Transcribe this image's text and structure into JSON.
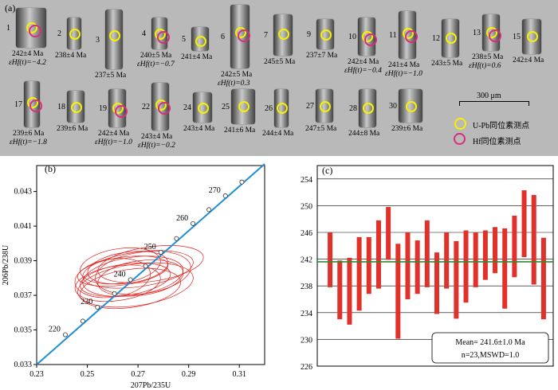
{
  "panel_labels": {
    "a": "(a)",
    "b": "(b)",
    "c": "(c)"
  },
  "grains": [
    {
      "num": "1",
      "age": "242±4 Ma",
      "eps": "εHf(t)=−4.2",
      "hf": true
    },
    {
      "num": "2",
      "age": "238±4 Ma",
      "eps": "",
      "hf": false
    },
    {
      "num": "3",
      "age": "237±5 Ma",
      "eps": "",
      "hf": false
    },
    {
      "num": "4",
      "age": "240±5 Ma",
      "eps": "εHf(t)=−0.7",
      "hf": true
    },
    {
      "num": "5",
      "age": "241±4 Ma",
      "eps": "",
      "hf": false
    },
    {
      "num": "6",
      "age": "242±5 Ma",
      "eps": "εHf(t)=0.3",
      "hf": true
    },
    {
      "num": "7",
      "age": "245±5 Ma",
      "eps": "",
      "hf": false
    },
    {
      "num": "9",
      "age": "237±7 Ma",
      "eps": "",
      "hf": false
    },
    {
      "num": "10",
      "age": "242±4 Ma",
      "eps": "εHf(t)=−0.4",
      "hf": true
    },
    {
      "num": "11",
      "age": "241±4 Ma",
      "eps": "εHf(t)=−1.0",
      "hf": true
    },
    {
      "num": "12",
      "age": "243±5 Ma",
      "eps": "",
      "hf": false
    },
    {
      "num": "13",
      "age": "238±5 Ma",
      "eps": "εHf(t)=0.6",
      "hf": true
    },
    {
      "num": "15",
      "age": "242±4 Ma",
      "eps": "",
      "hf": false
    },
    {
      "num": "17",
      "age": "239±6 Ma",
      "eps": "εHf(t)=−1.8",
      "hf": true
    },
    {
      "num": "18",
      "age": "239±6 Ma",
      "eps": "",
      "hf": false
    },
    {
      "num": "19",
      "age": "242±4 Ma",
      "eps": "εHf(t)=−1.0",
      "hf": true
    },
    {
      "num": "22",
      "age": "243±4 Ma",
      "eps": "εHf(t)=−0.2",
      "hf": true
    },
    {
      "num": "24",
      "age": "243±4 Ma",
      "eps": "",
      "hf": false
    },
    {
      "num": "25",
      "age": "241±6 Ma",
      "eps": "",
      "hf": false
    },
    {
      "num": "26",
      "age": "244±4 Ma",
      "eps": "",
      "hf": false
    },
    {
      "num": "27",
      "age": "247±5 Ma",
      "eps": "",
      "hf": false
    },
    {
      "num": "28",
      "age": "244±8 Ma",
      "eps": "",
      "hf": false
    },
    {
      "num": "30",
      "age": "239±6 Ma",
      "eps": "",
      "hf": false
    }
  ],
  "scale_bar_label": "300 μm",
  "legend": {
    "upb": "U-Pb同位素测点",
    "hf": "Hf同位素测点"
  },
  "colors": {
    "upb_spot": "#f5f100",
    "hf_spot": "#d62e7a",
    "ellipse": "#e0201c",
    "concordia": "#1f8fd6",
    "bar": "#e0312b",
    "mean_line": "#2e8b2e"
  },
  "chart_data": [
    {
      "type": "scatter",
      "title": "",
      "xlabel": "207Pb/235U",
      "ylabel": "206Pb/238U",
      "xlim": [
        0.23,
        0.32
      ],
      "ylim": [
        0.033,
        0.0445
      ],
      "xticks": [
        "0.23",
        "0.25",
        "0.27",
        "0.29",
        "0.31"
      ],
      "yticks": [
        "0.033",
        "0.035",
        "0.037",
        "0.039",
        "0.041",
        "0.043"
      ],
      "concordia_ages": [
        220,
        230,
        240,
        250,
        260,
        270
      ],
      "concordia_markers": [
        {
          "x": 0.2413,
          "y": 0.03472,
          "label": "220"
        },
        {
          "x": 0.2482,
          "y": 0.03551,
          "label": ""
        },
        {
          "x": 0.254,
          "y": 0.03631,
          "label": "230"
        },
        {
          "x": 0.2607,
          "y": 0.0371,
          "label": ""
        },
        {
          "x": 0.267,
          "y": 0.0379,
          "label": "240"
        },
        {
          "x": 0.273,
          "y": 0.03869,
          "label": ""
        },
        {
          "x": 0.279,
          "y": 0.03949,
          "label": "250"
        },
        {
          "x": 0.2852,
          "y": 0.04028,
          "label": ""
        },
        {
          "x": 0.2917,
          "y": 0.04115,
          "label": "260"
        },
        {
          "x": 0.298,
          "y": 0.04195,
          "label": ""
        },
        {
          "x": 0.3045,
          "y": 0.04275,
          "label": "270"
        },
        {
          "x": 0.311,
          "y": 0.04355,
          "label": ""
        }
      ],
      "ellipses": [
        {
          "x": 0.268,
          "y": 0.0381,
          "rx": 0.02,
          "ry": 0.0011
        },
        {
          "x": 0.265,
          "y": 0.0379,
          "rx": 0.018,
          "ry": 0.0009
        },
        {
          "x": 0.27,
          "y": 0.0385,
          "rx": 0.022,
          "ry": 0.001
        },
        {
          "x": 0.262,
          "y": 0.0377,
          "rx": 0.017,
          "ry": 0.001
        },
        {
          "x": 0.272,
          "y": 0.0383,
          "rx": 0.019,
          "ry": 0.0012
        },
        {
          "x": 0.266,
          "y": 0.0386,
          "rx": 0.016,
          "ry": 0.0009
        },
        {
          "x": 0.275,
          "y": 0.0388,
          "rx": 0.021,
          "ry": 0.001
        },
        {
          "x": 0.26,
          "y": 0.038,
          "rx": 0.015,
          "ry": 0.0011
        },
        {
          "x": 0.269,
          "y": 0.0376,
          "rx": 0.023,
          "ry": 0.0012
        },
        {
          "x": 0.264,
          "y": 0.0384,
          "rx": 0.018,
          "ry": 0.0008
        },
        {
          "x": 0.271,
          "y": 0.038,
          "rx": 0.017,
          "ry": 0.001
        },
        {
          "x": 0.267,
          "y": 0.0374,
          "rx": 0.02,
          "ry": 0.0011
        },
        {
          "x": 0.263,
          "y": 0.0387,
          "rx": 0.016,
          "ry": 0.001
        }
      ]
    },
    {
      "type": "bar",
      "title": "",
      "xlabel": "",
      "ylabel": "",
      "ylim": [
        226,
        256
      ],
      "yticks": [
        226,
        230,
        234,
        238,
        242,
        246,
        250,
        254
      ],
      "mean": 241.6,
      "ranges": [
        [
          237.8,
          246.0
        ],
        [
          233.0,
          241.8
        ],
        [
          232.2,
          242.2
        ],
        [
          234.3,
          245.3
        ],
        [
          236.8,
          245.3
        ],
        [
          237.6,
          247.8
        ],
        [
          241.9,
          249.8
        ],
        [
          230.1,
          244.3
        ],
        [
          236.0,
          246.0
        ],
        [
          236.8,
          244.8
        ],
        [
          237.8,
          247.8
        ],
        [
          233.8,
          243.0
        ],
        [
          237.6,
          246.0
        ],
        [
          233.1,
          244.7
        ],
        [
          235.5,
          246.3
        ],
        [
          237.8,
          246.0
        ],
        [
          238.9,
          246.3
        ],
        [
          239.9,
          246.8
        ],
        [
          234.6,
          246.6
        ],
        [
          239.3,
          248.5
        ],
        [
          242.3,
          252.3
        ],
        [
          238.2,
          251.6
        ],
        [
          233.0,
          245.2
        ]
      ],
      "annotation": [
        "Mean= 241.6±1.0 Ma",
        "n=23,MSWD=1.0"
      ]
    }
  ]
}
